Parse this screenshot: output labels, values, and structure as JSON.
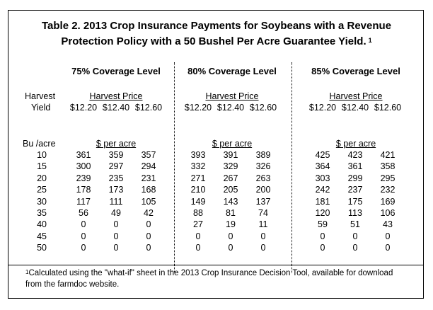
{
  "title": {
    "line1": "Table 2.  2013 Crop Insurance Payments for Soybeans with  a Revenue",
    "line2": "Protection Policy with a 50 Bushel Per Acre Guarantee Yield.",
    "footnote_marker": "1"
  },
  "stub_header": {
    "harvest": "Harvest",
    "yield": "Yield",
    "units": "Bu /acre"
  },
  "coverage_levels": [
    {
      "label": "75% Coverage Level",
      "price_header": "Harvest Price",
      "prices": [
        "$12.20",
        "$12.40",
        "$12.60"
      ],
      "unit": "$ per acre"
    },
    {
      "label": "80% Coverage Level",
      "price_header": "Harvest Price",
      "prices": [
        "$12.20",
        "$12.40",
        "$12.60"
      ],
      "unit": "$ per acre"
    },
    {
      "label": "85% Coverage Level",
      "price_header": "Harvest Price",
      "prices": [
        "$12.20",
        "$12.40",
        "$12.60"
      ],
      "unit": "$ per acre"
    }
  ],
  "rows": [
    {
      "yield": "10",
      "values": [
        "361",
        "359",
        "357",
        "393",
        "391",
        "389",
        "425",
        "423",
        "421"
      ]
    },
    {
      "yield": "15",
      "values": [
        "300",
        "297",
        "294",
        "332",
        "329",
        "326",
        "364",
        "361",
        "358"
      ]
    },
    {
      "yield": "20",
      "values": [
        "239",
        "235",
        "231",
        "271",
        "267",
        "263",
        "303",
        "299",
        "295"
      ]
    },
    {
      "yield": "25",
      "values": [
        "178",
        "173",
        "168",
        "210",
        "205",
        "200",
        "242",
        "237",
        "232"
      ]
    },
    {
      "yield": "30",
      "values": [
        "117",
        "111",
        "105",
        "149",
        "143",
        "137",
        "181",
        "175",
        "169"
      ]
    },
    {
      "yield": "35",
      "values": [
        "56",
        "49",
        "42",
        "88",
        "81",
        "74",
        "120",
        "113",
        "106"
      ]
    },
    {
      "yield": "40",
      "values": [
        "0",
        "0",
        "0",
        "27",
        "19",
        "11",
        "59",
        "51",
        "43"
      ]
    },
    {
      "yield": "45",
      "values": [
        "0",
        "0",
        "0",
        "0",
        "0",
        "0",
        "0",
        "0",
        "0"
      ]
    },
    {
      "yield": "50",
      "values": [
        "0",
        "0",
        "0",
        "0",
        "0",
        "0",
        "0",
        "0",
        "0"
      ]
    }
  ],
  "footnote": {
    "marker": "1",
    "text": "Calculated using the \"what-if\" sheet in the 2013 Crop Insurance Decision Tool, available for download from the farmdoc website."
  }
}
